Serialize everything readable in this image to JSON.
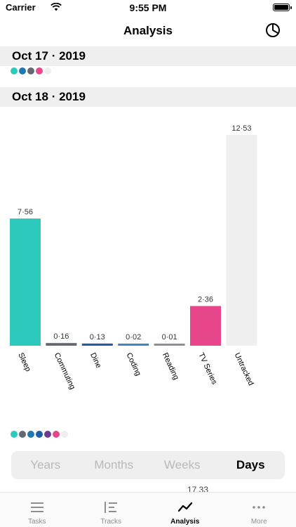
{
  "status": {
    "carrier": "Carrier",
    "time": "9:55 PM"
  },
  "nav": {
    "title": "Analysis",
    "right_icon": "pie-chart-icon"
  },
  "sections": [
    {
      "date": "Oct 17 · 2019",
      "dots": [
        "#2ec9bd",
        "#1e78b4",
        "#636871",
        "#e8468a",
        "#eeeeee"
      ]
    },
    {
      "date": "Oct 18 · 2019",
      "dots": [
        "#2ec9bd",
        "#636871",
        "#1e78b4",
        "#1e5da8",
        "#6e3a8e",
        "#e8468a",
        "#eeeeee"
      ]
    }
  ],
  "chart_data": {
    "type": "bar",
    "categories": [
      "Sleep",
      "Commuting",
      "Dine",
      "Coding",
      "Reading",
      "TV Series",
      "Untracked"
    ],
    "values": [
      7.56,
      0.16,
      0.13,
      0.02,
      0.01,
      2.36,
      12.53
    ],
    "value_labels": [
      "7·56",
      "0·16",
      "0·13",
      "0·02",
      "0·01",
      "2·36",
      "12·53"
    ],
    "colors": [
      "#2ec9bd",
      "#636871",
      "#1e5da8",
      "#3a86c8",
      "#8a8f99",
      "#e8468a",
      "#efefef"
    ],
    "ylim": [
      0,
      12.53
    ],
    "grid": false,
    "title": "",
    "xlabel": "",
    "ylabel": ""
  },
  "segmented": {
    "options": [
      "Years",
      "Months",
      "Weeks",
      "Days"
    ],
    "selected": "Days"
  },
  "overflow_total": "17.33",
  "tabs": [
    {
      "label": "Tasks",
      "icon": "list-icon"
    },
    {
      "label": "Tracks",
      "icon": "tracks-icon"
    },
    {
      "label": "Analysis",
      "icon": "line-chart-icon",
      "active": true
    },
    {
      "label": "More",
      "icon": "more-icon"
    }
  ]
}
